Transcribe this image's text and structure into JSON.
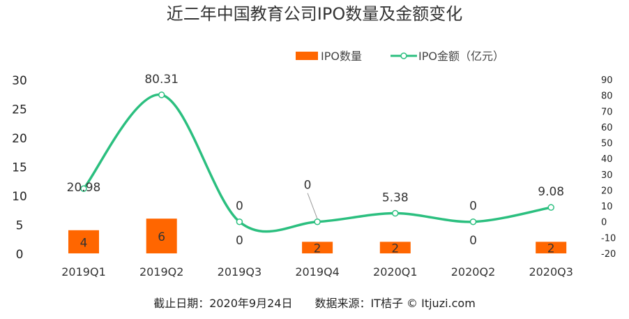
{
  "chart_data": {
    "type": "bar+line",
    "title": "近二年中国教育公司IPO数量及金额变化",
    "categories": [
      "2019Q1",
      "2019Q2",
      "2019Q3",
      "2019Q4",
      "2020Q1",
      "2020Q2",
      "2020Q3"
    ],
    "series": [
      {
        "name": "IPO数量",
        "type": "bar",
        "axis": "left",
        "color": "#FF6600",
        "values": [
          4,
          6,
          0,
          2,
          2,
          0,
          2
        ]
      },
      {
        "name": "IPO金额（亿元）",
        "type": "line",
        "axis": "right",
        "color": "#2BBF7F",
        "values": [
          20.98,
          80.31,
          0,
          0,
          5.38,
          0,
          9.08
        ]
      }
    ],
    "left_axis": {
      "ylim": [
        0,
        30
      ],
      "ticks": [
        0,
        5,
        10,
        15,
        20,
        25,
        30
      ]
    },
    "right_axis": {
      "ylim": [
        -20,
        90
      ],
      "ticks": [
        -20,
        -10,
        0,
        10,
        20,
        30,
        40,
        50,
        60,
        70,
        80,
        90
      ]
    },
    "legend": "top-right",
    "grid": false
  },
  "footer": "截止日期：2020年9月24日　　数据来源：IT桔子 © Itjuzi.com"
}
